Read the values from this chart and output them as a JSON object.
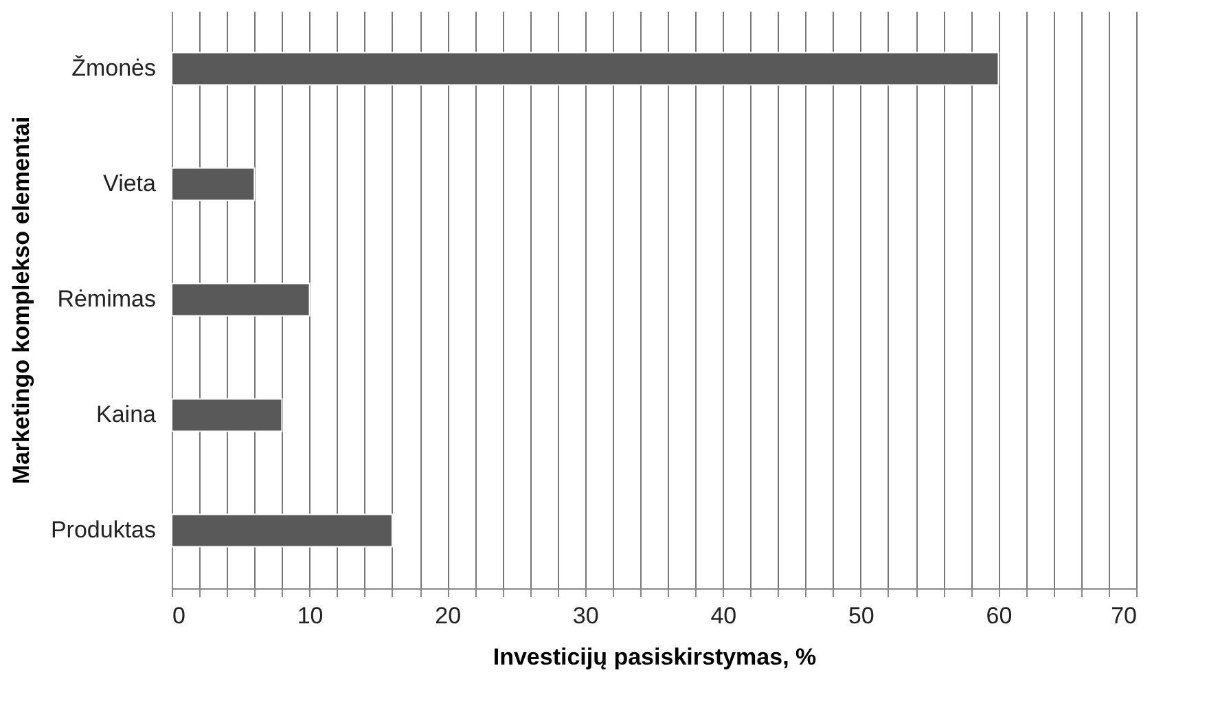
{
  "chart_data": {
    "type": "bar",
    "orientation": "horizontal",
    "xlabel": "Investicijų pasiskirstymas, %",
    "ylabel": "Marketingo komplekso elementai",
    "categories": [
      "Žmonės",
      "Vieta",
      "Rėmimas",
      "Kaina",
      "Produktas"
    ],
    "values": [
      60,
      6,
      10,
      8,
      16
    ],
    "color": "#595959",
    "xlim": [
      0,
      70
    ],
    "xticks": [
      0,
      {
        "value": 2,
        "label": null
      },
      {
        "value": 4,
        "label": null
      },
      {
        "value": 6,
        "label": null
      },
      {
        "value": 8,
        "label": null
      },
      10,
      {
        "value": 12,
        "label": null
      },
      {
        "value": 14,
        "label": null
      },
      {
        "value": 16,
        "label": null
      },
      {
        "value": 18,
        "label": null
      },
      20,
      {
        "value": 22,
        "label": null
      },
      {
        "value": 24,
        "label": null
      },
      {
        "value": 26,
        "label": null
      },
      {
        "value": 28,
        "label": null
      },
      30,
      {
        "value": 32,
        "label": null
      },
      {
        "value": 34,
        "label": null
      },
      {
        "value": 36,
        "label": null
      },
      {
        "value": 38,
        "label": null
      },
      40,
      {
        "value": 42,
        "label": null
      },
      {
        "value": 44,
        "label": null
      },
      {
        "value": 46,
        "label": null
      },
      {
        "value": 48,
        "label": null
      },
      50,
      {
        "value": 52,
        "label": null
      },
      {
        "value": 54,
        "label": null
      },
      {
        "value": 56,
        "label": null
      },
      {
        "value": 58,
        "label": null
      },
      60,
      {
        "value": 62,
        "label": null
      },
      {
        "value": 64,
        "label": null
      },
      {
        "value": 66,
        "label": null
      },
      {
        "value": 68,
        "label": null
      },
      70
    ],
    "grid": "x"
  }
}
